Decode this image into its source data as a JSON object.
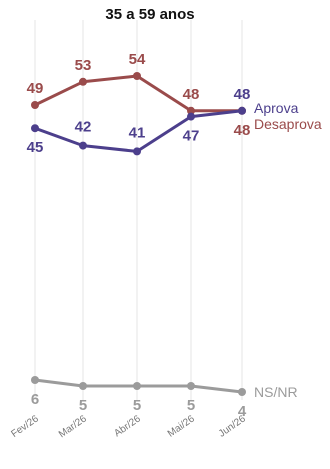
{
  "chart_data": {
    "type": "line",
    "title": "35 a 59 anos",
    "categories": [
      "Fev/26",
      "Mar/26",
      "Abr/26",
      "Mai/26",
      "Jun/26"
    ],
    "series": [
      {
        "name": "Desaprova",
        "color": "#9a4b4b",
        "values": [
          49,
          53,
          54,
          48,
          48
        ]
      },
      {
        "name": "Aprova",
        "color": "#4c3f8c",
        "values": [
          45,
          42,
          41,
          47,
          48
        ]
      },
      {
        "name": "NS/NR",
        "color": "#9b9b9b",
        "values": [
          6,
          5,
          5,
          5,
          4
        ]
      }
    ],
    "grid": true,
    "legend": "right"
  }
}
